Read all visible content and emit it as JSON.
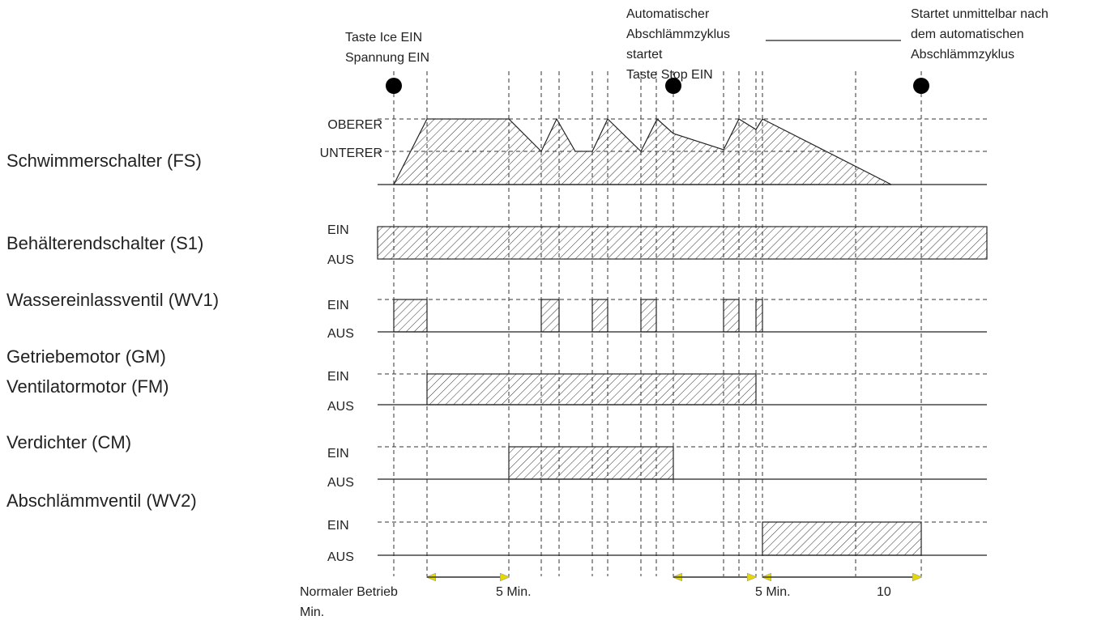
{
  "annotations": {
    "start": [
      "Taste Ice EIN",
      "Spannung EIN"
    ],
    "drain_start": [
      "Automatischer",
      "Abschlämmzyklus",
      "startet",
      "Taste Stop EIN"
    ],
    "after_drain": [
      "Startet unmittelbar nach",
      "dem automatischen",
      "Abschlämmzyklus"
    ]
  },
  "signals": [
    {
      "label": [
        "Schwimmerschalter  (FS)"
      ],
      "high": "OBERER",
      "low": "UNTERER"
    },
    {
      "label": [
        "Behälterendschalter (S1)"
      ],
      "high": "EIN",
      "low": "AUS"
    },
    {
      "label": [
        "Wassereinlassventil  (WV1)"
      ],
      "high": "EIN",
      "low": "AUS"
    },
    {
      "label": [
        "Getriebemotor (GM)",
        "Ventilatormotor (FM)"
      ],
      "high": "EIN",
      "low": "AUS"
    },
    {
      "label": [
        "Verdichter (CM)"
      ],
      "high": "EIN",
      "low": "AUS"
    },
    {
      "label": [
        "Abschlämmventil  (WV2)"
      ],
      "high": "EIN",
      "low": "AUS"
    }
  ],
  "time_labels": [
    "Normaler Betrieb",
    "Min.",
    "5 Min.",
    "5 Min.",
    "10"
  ]
}
